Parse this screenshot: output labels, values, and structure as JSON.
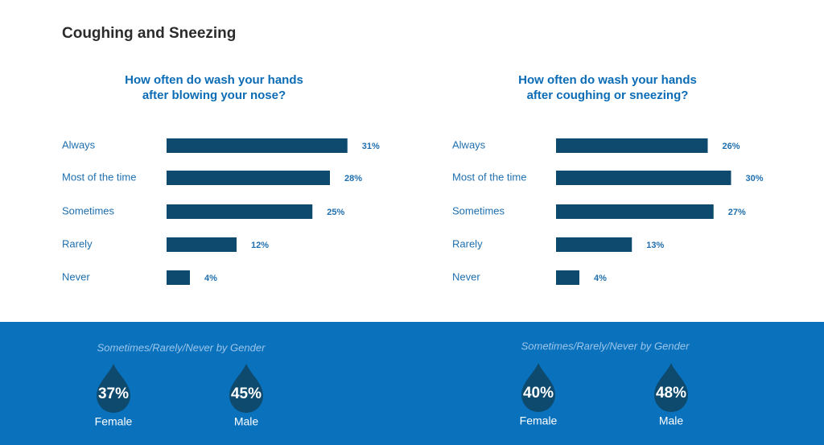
{
  "title": "Coughing and Sneezing",
  "chart_data": [
    {
      "type": "bar",
      "orientation": "horizontal",
      "title": [
        "How often do wash your hands",
        "after blowing your nose?"
      ],
      "categories": [
        "Always",
        "Most of the time",
        "Sometimes",
        "Rarely",
        "Never"
      ],
      "values": [
        31,
        28,
        25,
        12,
        4
      ],
      "value_labels": [
        "31%",
        "28%",
        "25%",
        "12%",
        "4%"
      ],
      "color": "#0d4a6e"
    },
    {
      "type": "bar",
      "orientation": "horizontal",
      "title": [
        "How often do wash your hands",
        "after coughing or sneezing?"
      ],
      "categories": [
        "Always",
        "Most of the time",
        "Sometimes",
        "Rarely",
        "Never"
      ],
      "values": [
        26,
        30,
        27,
        13,
        4
      ],
      "value_labels": [
        "26%",
        "30%",
        "27%",
        "13%",
        "4%"
      ],
      "color": "#0d4a6e"
    }
  ],
  "gender": [
    {
      "subtitle": "Sometimes/Rarely/Never by Gender",
      "categories": [
        "Female",
        "Male"
      ],
      "values": [
        37,
        45
      ],
      "value_labels": [
        "37%",
        "45%"
      ],
      "color": "#0d4a6e"
    },
    {
      "subtitle": "Sometimes/Rarely/Never by Gender",
      "categories": [
        "Female",
        "Male"
      ],
      "values": [
        40,
        48
      ],
      "value_labels": [
        "40%",
        "48%"
      ],
      "color": "#0d4a6e"
    }
  ]
}
